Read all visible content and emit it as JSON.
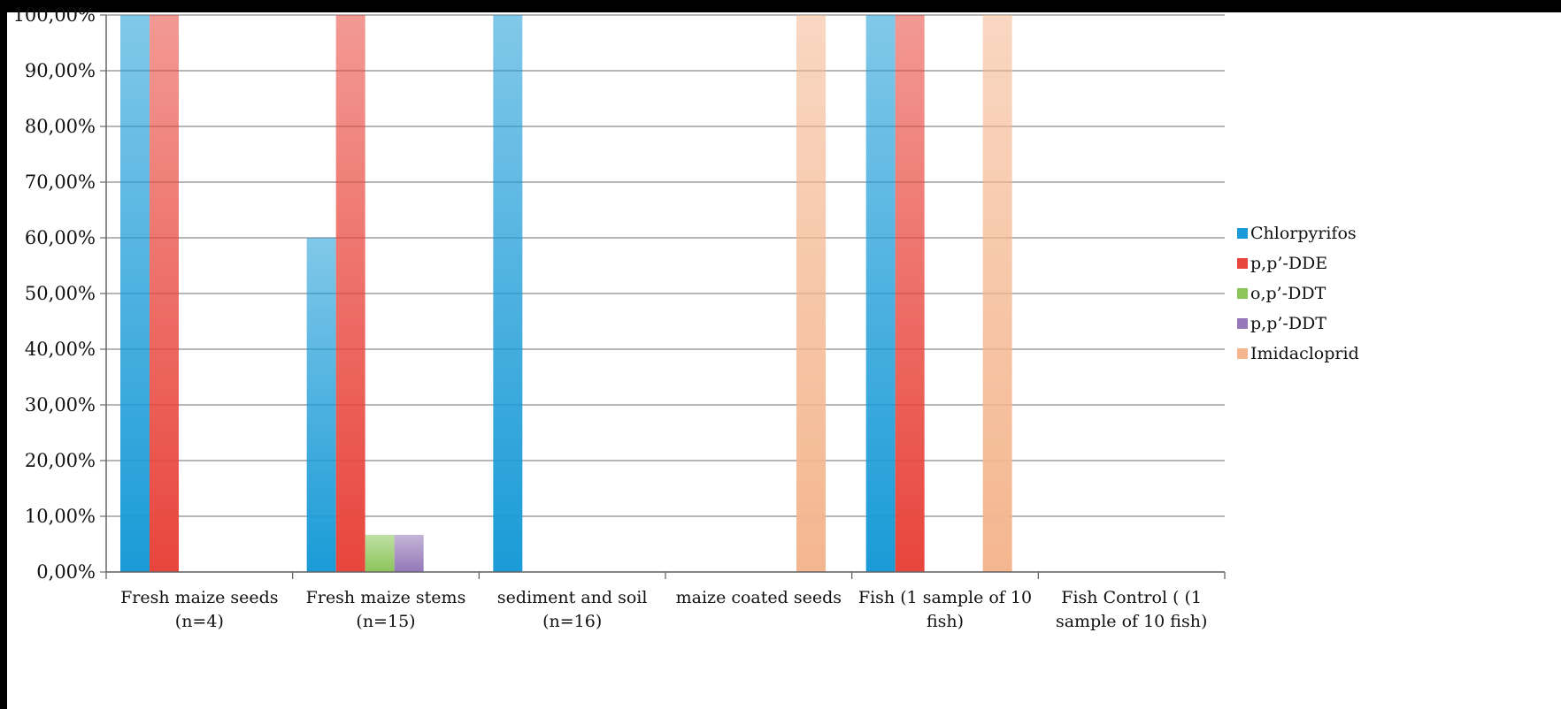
{
  "chart_data": {
    "type": "bar",
    "categories": [
      [
        "Fresh maize seeds",
        "(n=4)"
      ],
      [
        "Fresh maize stems",
        "(n=15)"
      ],
      [
        "sediment and soil",
        "(n=16)"
      ],
      [
        "maize coated seeds"
      ],
      [
        "Fish (1 sample of 10",
        "fish)"
      ],
      [
        "Fish Control ( (1",
        "sample of 10 fish)"
      ]
    ],
    "series": [
      {
        "name": "Chlorpyrifos",
        "color": "#1a9bd7",
        "values": [
          100,
          60,
          100,
          0,
          100,
          0
        ]
      },
      {
        "name": "p,p’-DDE",
        "color": "#e8453c",
        "values": [
          100,
          100,
          0,
          0,
          100,
          0
        ]
      },
      {
        "name": "o,p’-DDT",
        "color": "#8cc55a",
        "values": [
          0,
          6.67,
          0,
          0,
          0,
          0
        ]
      },
      {
        "name": "p,p’-DDT",
        "color": "#9478b8",
        "values": [
          0,
          6.67,
          0,
          0,
          0,
          0
        ]
      },
      {
        "name": "Imidacloprid",
        "color": "#f4b68f",
        "values": [
          0,
          0,
          0,
          100,
          100,
          0
        ]
      }
    ],
    "yticks": [
      "0,00%",
      "10,00%",
      "20,00%",
      "30,00%",
      "40,00%",
      "50,00%",
      "60,00%",
      "70,00%",
      "80,00%",
      "90,00%",
      "100,00%"
    ],
    "ylim": [
      0,
      100
    ],
    "grid": true,
    "legend_position": "right",
    "title": "",
    "xlabel": "",
    "ylabel": ""
  }
}
